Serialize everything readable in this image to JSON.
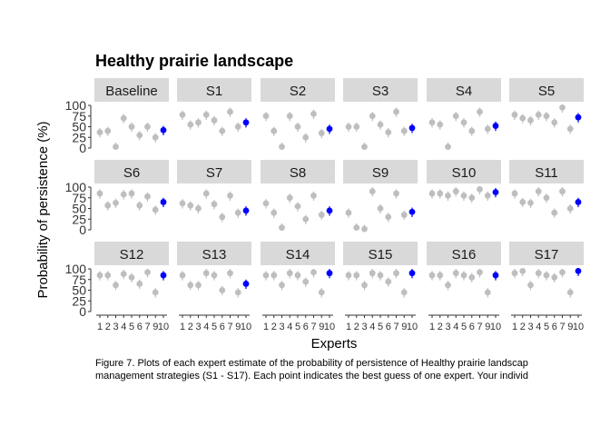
{
  "chart_data": {
    "type": "scatter",
    "title": "Healthy prairie landscape",
    "xlabel": "Experts",
    "ylabel": "Probability of persistence (%)",
    "y_ticks": [
      "0",
      "25",
      "50",
      "75",
      "100"
    ],
    "ylim": [
      0,
      100
    ],
    "x_tick_labels": [
      "1",
      "2",
      "3",
      "4",
      "5",
      "6",
      "7",
      "9",
      "10"
    ],
    "x_values": [
      1,
      2,
      3,
      4,
      5,
      6,
      7,
      8,
      9
    ],
    "colors": {
      "expert_point": "#bebebe",
      "your_point": "#0000ff",
      "strip_bg": "#d9d9d9"
    },
    "legend": "none",
    "panels": [
      {
        "label": "Baseline",
        "values": [
          37,
          40,
          3,
          70,
          50,
          30,
          50,
          25,
          42
        ]
      },
      {
        "label": "S1",
        "values": [
          78,
          55,
          60,
          78,
          65,
          40,
          85,
          50,
          60
        ]
      },
      {
        "label": "S2",
        "values": [
          75,
          40,
          3,
          75,
          50,
          25,
          80,
          35,
          45
        ]
      },
      {
        "label": "S3",
        "values": [
          50,
          50,
          3,
          75,
          55,
          37,
          85,
          40,
          47
        ]
      },
      {
        "label": "S4",
        "values": [
          60,
          55,
          3,
          75,
          60,
          40,
          85,
          45,
          52
        ]
      },
      {
        "label": "S5",
        "values": [
          78,
          70,
          65,
          78,
          75,
          60,
          95,
          45,
          72
        ]
      },
      {
        "label": "S6",
        "values": [
          85,
          57,
          63,
          83,
          85,
          57,
          78,
          47,
          65
        ]
      },
      {
        "label": "S7",
        "values": [
          62,
          57,
          50,
          85,
          60,
          30,
          80,
          40,
          45
        ]
      },
      {
        "label": "S8",
        "values": [
          62,
          40,
          5,
          75,
          55,
          25,
          80,
          35,
          45
        ]
      },
      {
        "label": "S9",
        "values": [
          40,
          5,
          2,
          90,
          50,
          30,
          85,
          35,
          42
        ]
      },
      {
        "label": "S10",
        "values": [
          85,
          85,
          80,
          90,
          80,
          75,
          95,
          80,
          88
        ]
      },
      {
        "label": "S11",
        "values": [
          85,
          65,
          63,
          90,
          75,
          40,
          90,
          50,
          65
        ]
      },
      {
        "label": "S12",
        "values": [
          85,
          85,
          62,
          88,
          80,
          65,
          92,
          45,
          85
        ]
      },
      {
        "label": "S13",
        "values": [
          85,
          62,
          62,
          90,
          85,
          50,
          90,
          45,
          65
        ]
      },
      {
        "label": "S14",
        "values": [
          85,
          85,
          62,
          90,
          85,
          70,
          92,
          45,
          90
        ]
      },
      {
        "label": "S15",
        "values": [
          85,
          85,
          62,
          90,
          85,
          70,
          90,
          45,
          90
        ]
      },
      {
        "label": "S16",
        "values": [
          85,
          85,
          62,
          90,
          85,
          80,
          92,
          45,
          85
        ]
      },
      {
        "label": "S17",
        "values": [
          90,
          95,
          62,
          90,
          85,
          80,
          92,
          45,
          95
        ]
      }
    ]
  },
  "caption": {
    "line1": "Figure 7. Plots of each expert estimate of the probability of persistence of Healthy prairie landscap",
    "line2": "management strategies (S1 - S17). Each point indicates the best guess of one expert. Your individ"
  }
}
